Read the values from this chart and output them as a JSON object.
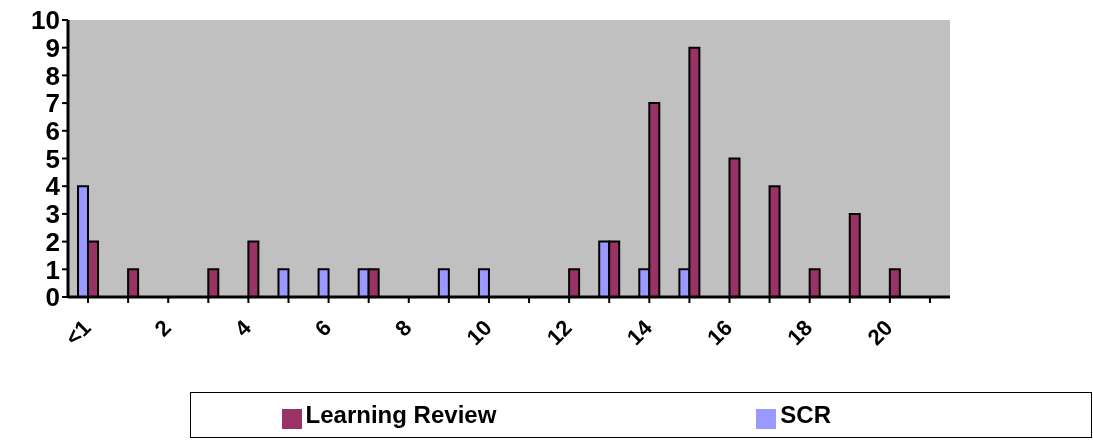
{
  "chart_data": {
    "type": "bar",
    "categories": [
      "<1",
      null,
      "2",
      null,
      "4",
      null,
      "6",
      null,
      "8",
      null,
      "10",
      null,
      "12",
      null,
      "14",
      null,
      "16",
      null,
      "18",
      null,
      "20",
      null
    ],
    "series": [
      {
        "name": "SCR",
        "color": "#9999ff",
        "values": [
          4,
          0,
          0,
          0,
          0,
          1,
          1,
          1,
          0,
          1,
          1,
          0,
          0,
          2,
          1,
          1,
          0,
          0,
          0,
          0,
          0,
          0
        ]
      },
      {
        "name": "Learning Review",
        "color": "#993366",
        "values": [
          2,
          1,
          0,
          1,
          2,
          0,
          0,
          1,
          0,
          0,
          0,
          0,
          1,
          2,
          7,
          9,
          5,
          4,
          1,
          3,
          1,
          0
        ]
      }
    ],
    "ylim": [
      0,
      10
    ],
    "yticks": [
      0,
      1,
      2,
      3,
      4,
      5,
      6,
      7,
      8,
      9,
      10
    ],
    "grid": false,
    "legend": "bottom"
  }
}
